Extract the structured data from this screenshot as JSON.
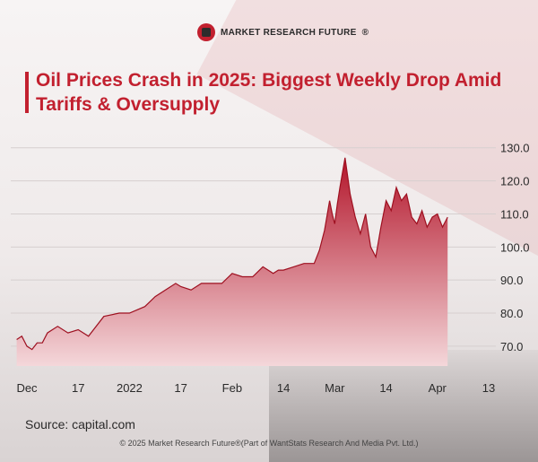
{
  "brand": {
    "name": "MARKET RESEARCH FUTURE",
    "reg": "®"
  },
  "title": "Oil Prices Crash in 2025: Biggest Weekly Drop Amid Tariffs & Oversupply",
  "source": "Source: capital.com",
  "footer": "© 2025 Market Research Future®(Part of WantStats Research And Media Pvt. Ltd.)",
  "colors": {
    "accent": "#c2202f",
    "area_top": "#b3152a",
    "area_bottom": "#f4d7da",
    "line": "#9e1020"
  },
  "chart_data": {
    "type": "area",
    "title": "Oil Prices Crash in 2025: Biggest Weekly Drop Amid Tariffs & Oversupply",
    "xlabel": "",
    "ylabel": "",
    "ylim": [
      64,
      134
    ],
    "grid": true,
    "legend": "none",
    "y_axis_position": "right",
    "yticks": [
      "70.0",
      "80.0",
      "90.0",
      "100.0",
      "110.0",
      "120.0",
      "130.0"
    ],
    "xticks": [
      "Dec",
      "17",
      "2022",
      "17",
      "Feb",
      "14",
      "Mar",
      "14",
      "Apr",
      "13"
    ],
    "x_range": [
      0,
      9
    ],
    "tick_positions": [
      0,
      1,
      2,
      3,
      4,
      5,
      6,
      7,
      8,
      9
    ],
    "series": [
      {
        "x": [
          -0.2,
          -0.1,
          0.0,
          0.1,
          0.2,
          0.3,
          0.4,
          0.6,
          0.8,
          1.0,
          1.2,
          1.5,
          1.8,
          2.0,
          2.3,
          2.5,
          2.7,
          2.9,
          3.0,
          3.2,
          3.4,
          3.6,
          3.8,
          4.0,
          4.2,
          4.4,
          4.6,
          4.8,
          4.9,
          5.0,
          5.2,
          5.4,
          5.5,
          5.6,
          5.7,
          5.8,
          5.9,
          5.95,
          6.0,
          6.05,
          6.1,
          6.2,
          6.3,
          6.4,
          6.5,
          6.6,
          6.7,
          6.8,
          6.9,
          7.0,
          7.1,
          7.2,
          7.3,
          7.4,
          7.5,
          7.6,
          7.7,
          7.8,
          7.9,
          8.0,
          8.1,
          8.2
        ],
        "y": [
          72,
          73,
          70,
          69,
          71,
          71,
          74,
          76,
          74,
          75,
          73,
          79,
          80,
          80,
          82,
          85,
          87,
          89,
          88,
          87,
          89,
          89,
          89,
          92,
          91,
          91,
          94,
          92,
          93,
          93,
          94,
          95,
          95,
          95,
          99,
          105,
          114,
          110,
          107,
          113,
          118,
          127,
          116,
          109,
          104,
          110,
          100,
          97,
          106,
          114,
          111,
          118,
          114,
          116,
          109,
          107,
          111,
          106,
          109,
          110,
          106,
          109
        ]
      }
    ]
  }
}
